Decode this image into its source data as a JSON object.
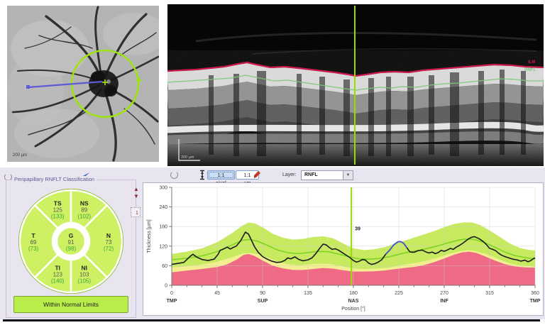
{
  "toolbar": {
    "pixel_button": "1:1 pixel",
    "um_button": "1:1 µm",
    "layer_label": "Layer:",
    "layer_value": "RNFL"
  },
  "fundus": {
    "scale_label": "200 µm"
  },
  "oct": {
    "scale_label": "200 µm",
    "label_ilm": "ILM",
    "label_rnfl": "RNFL"
  },
  "spinner": {
    "value": "1"
  },
  "classification": {
    "title": "Peripapillary RNFLT Classification",
    "status": "Within Normal Limits",
    "sectors": [
      {
        "id": "TS",
        "value": "125",
        "norm": "(133)"
      },
      {
        "id": "NS",
        "value": "89",
        "norm": "(102)"
      },
      {
        "id": "N",
        "value": "73",
        "norm": "(72)"
      },
      {
        "id": "NI",
        "value": "103",
        "norm": "(105)"
      },
      {
        "id": "TI",
        "value": "123",
        "norm": "(140)"
      },
      {
        "id": "T",
        "value": "69",
        "norm": "(73)"
      },
      {
        "id": "G",
        "value": "91",
        "norm": "(98)"
      }
    ]
  },
  "colors": {
    "band_green": "#c7ea60",
    "band_yellow": "#f3ef8e",
    "band_red": "#ef6a84",
    "mean_line": "#7ed321",
    "measured_line": "#1b1b1b",
    "highlight_line": "#4857c8",
    "cursor": "#98dd00",
    "sector_fill": "#cdf162",
    "sector_border": "#8ab82e",
    "value_text": "#555555",
    "norm_text": "#3aa53a",
    "ilm_line": "#cc1a4e",
    "rnfl_line": "#7cc87b"
  },
  "chart_data": {
    "type": "line",
    "title": "",
    "xlabel": "Position [°]",
    "ylabel": "Thickness [µm]",
    "xlim": [
      0,
      360
    ],
    "ylim": [
      0,
      300
    ],
    "xticks": [
      0,
      45,
      90,
      135,
      180,
      225,
      270,
      315,
      360
    ],
    "yticks": [
      0,
      60,
      120,
      180,
      240,
      300
    ],
    "minor_tick_step": 15,
    "grid": true,
    "region_labels": [
      {
        "pos": 0,
        "text": "TMP"
      },
      {
        "pos": 90,
        "text": "SUP"
      },
      {
        "pos": 180,
        "text": "NAS"
      },
      {
        "pos": 270,
        "text": "INF"
      },
      {
        "pos": 360,
        "text": "TMP"
      }
    ],
    "cursor": {
      "x": 178,
      "label": "39",
      "label_y": 168
    },
    "bands": {
      "upper95": [
        [
          0,
          96
        ],
        [
          15,
          103
        ],
        [
          30,
          113
        ],
        [
          45,
          132
        ],
        [
          60,
          160
        ],
        [
          70,
          183
        ],
        [
          76,
          192
        ],
        [
          82,
          190
        ],
        [
          90,
          178
        ],
        [
          100,
          158
        ],
        [
          110,
          146
        ],
        [
          120,
          140
        ],
        [
          130,
          142
        ],
        [
          140,
          148
        ],
        [
          150,
          150
        ],
        [
          160,
          144
        ],
        [
          170,
          128
        ],
        [
          180,
          113
        ],
        [
          190,
          108
        ],
        [
          200,
          110
        ],
        [
          210,
          116
        ],
        [
          220,
          126
        ],
        [
          230,
          136
        ],
        [
          240,
          146
        ],
        [
          250,
          156
        ],
        [
          260,
          166
        ],
        [
          270,
          178
        ],
        [
          280,
          188
        ],
        [
          290,
          193
        ],
        [
          298,
          192
        ],
        [
          306,
          184
        ],
        [
          315,
          168
        ],
        [
          325,
          148
        ],
        [
          335,
          128
        ],
        [
          345,
          114
        ],
        [
          355,
          108
        ],
        [
          360,
          107
        ]
      ],
      "lower5": [
        [
          0,
          54
        ],
        [
          15,
          58
        ],
        [
          30,
          63
        ],
        [
          45,
          72
        ],
        [
          60,
          86
        ],
        [
          70,
          97
        ],
        [
          78,
          99
        ],
        [
          85,
          95
        ],
        [
          95,
          84
        ],
        [
          105,
          72
        ],
        [
          115,
          64
        ],
        [
          125,
          61
        ],
        [
          135,
          63
        ],
        [
          145,
          66
        ],
        [
          155,
          65
        ],
        [
          165,
          60
        ],
        [
          175,
          54
        ],
        [
          185,
          50
        ],
        [
          195,
          50
        ],
        [
          205,
          51
        ],
        [
          215,
          54
        ],
        [
          225,
          60
        ],
        [
          235,
          65
        ],
        [
          245,
          70
        ],
        [
          255,
          77
        ],
        [
          265,
          86
        ],
        [
          275,
          96
        ],
        [
          285,
          104
        ],
        [
          293,
          107
        ],
        [
          300,
          105
        ],
        [
          310,
          97
        ],
        [
          320,
          85
        ],
        [
          330,
          72
        ],
        [
          340,
          63
        ],
        [
          350,
          59
        ],
        [
          360,
          57
        ]
      ],
      "lower1": [
        [
          0,
          40
        ],
        [
          15,
          45
        ],
        [
          30,
          50
        ],
        [
          45,
          56
        ],
        [
          55,
          64
        ],
        [
          65,
          80
        ],
        [
          71,
          93
        ],
        [
          76,
          96
        ],
        [
          82,
          90
        ],
        [
          90,
          76
        ],
        [
          100,
          60
        ],
        [
          110,
          52
        ],
        [
          120,
          47
        ],
        [
          130,
          47
        ],
        [
          140,
          50
        ],
        [
          150,
          53
        ],
        [
          160,
          51
        ],
        [
          170,
          46
        ],
        [
          180,
          42
        ],
        [
          190,
          42
        ],
        [
          200,
          43
        ],
        [
          210,
          45
        ],
        [
          220,
          49
        ],
        [
          230,
          53
        ],
        [
          240,
          56
        ],
        [
          250,
          62
        ],
        [
          260,
          71
        ],
        [
          270,
          82
        ],
        [
          280,
          94
        ],
        [
          288,
          101
        ],
        [
          295,
          103
        ],
        [
          302,
          99
        ],
        [
          310,
          89
        ],
        [
          320,
          76
        ],
        [
          330,
          65
        ],
        [
          340,
          58
        ],
        [
          350,
          55
        ],
        [
          360,
          54
        ]
      ]
    },
    "series": [
      {
        "name": "normal-mean",
        "color_key": "mean_line",
        "width": 1.6,
        "points": [
          [
            0,
            78
          ],
          [
            15,
            83
          ],
          [
            30,
            90
          ],
          [
            45,
            103
          ],
          [
            60,
            124
          ],
          [
            70,
            138
          ],
          [
            78,
            140
          ],
          [
            85,
            135
          ],
          [
            95,
            122
          ],
          [
            105,
            108
          ],
          [
            115,
            100
          ],
          [
            125,
            97
          ],
          [
            135,
            100
          ],
          [
            145,
            104
          ],
          [
            155,
            103
          ],
          [
            165,
            96
          ],
          [
            175,
            88
          ],
          [
            185,
            81
          ],
          [
            195,
            80
          ],
          [
            205,
            82
          ],
          [
            215,
            87
          ],
          [
            225,
            95
          ],
          [
            235,
            102
          ],
          [
            245,
            107
          ],
          [
            255,
            114
          ],
          [
            265,
            122
          ],
          [
            275,
            131
          ],
          [
            285,
            139
          ],
          [
            293,
            142
          ],
          [
            300,
            140
          ],
          [
            310,
            131
          ],
          [
            320,
            117
          ],
          [
            330,
            102
          ],
          [
            340,
            91
          ],
          [
            350,
            85
          ],
          [
            360,
            80
          ]
        ]
      },
      {
        "name": "measured",
        "color_key": "measured_line",
        "width": 1.6,
        "points": [
          [
            0,
            64
          ],
          [
            6,
            67
          ],
          [
            12,
            70
          ],
          [
            18,
            88
          ],
          [
            21,
            95
          ],
          [
            25,
            86
          ],
          [
            30,
            79
          ],
          [
            36,
            76
          ],
          [
            42,
            80
          ],
          [
            46,
            95
          ],
          [
            48,
            107
          ],
          [
            52,
            112
          ],
          [
            55,
            117
          ],
          [
            58,
            111
          ],
          [
            61,
            116
          ],
          [
            64,
            120
          ],
          [
            68,
            135
          ],
          [
            71,
            152
          ],
          [
            73,
            163
          ],
          [
            76,
            157
          ],
          [
            79,
            138
          ],
          [
            82,
            118
          ],
          [
            86,
            100
          ],
          [
            90,
            88
          ],
          [
            94,
            81
          ],
          [
            99,
            74
          ],
          [
            104,
            70
          ],
          [
            108,
            71
          ],
          [
            112,
            76
          ],
          [
            115,
            84
          ],
          [
            118,
            81
          ],
          [
            122,
            87
          ],
          [
            126,
            79
          ],
          [
            130,
            75
          ],
          [
            135,
            78
          ],
          [
            139,
            84
          ],
          [
            143,
            98
          ],
          [
            147,
            115
          ],
          [
            150,
            126
          ],
          [
            153,
            124
          ],
          [
            156,
            116
          ],
          [
            159,
            110
          ],
          [
            162,
            112
          ],
          [
            165,
            108
          ],
          [
            168,
            102
          ],
          [
            172,
            94
          ],
          [
            176,
            86
          ],
          [
            180,
            76
          ],
          [
            183,
            71
          ],
          [
            186,
            74
          ],
          [
            189,
            79
          ],
          [
            192,
            77
          ],
          [
            195,
            68
          ],
          [
            198,
            64
          ],
          [
            201,
            66
          ],
          [
            204,
            70
          ],
          [
            208,
            78
          ],
          [
            212,
            95
          ],
          [
            216,
            108
          ],
          [
            220,
            124
          ],
          [
            224,
            133
          ],
          [
            227,
            134
          ],
          [
            230,
            128
          ],
          [
            233,
            115
          ],
          [
            236,
            102
          ],
          [
            240,
            101
          ],
          [
            244,
            106
          ],
          [
            248,
            108
          ],
          [
            252,
            102
          ],
          [
            255,
            99
          ],
          [
            258,
            102
          ],
          [
            261,
            97
          ],
          [
            264,
            100
          ],
          [
            267,
            107
          ],
          [
            270,
            104
          ],
          [
            273,
            108
          ],
          [
            276,
            113
          ],
          [
            279,
            110
          ],
          [
            282,
            117
          ],
          [
            285,
            122
          ],
          [
            288,
            128
          ],
          [
            291,
            135
          ],
          [
            294,
            142
          ],
          [
            297,
            147
          ],
          [
            300,
            149
          ],
          [
            303,
            145
          ],
          [
            306,
            140
          ],
          [
            309,
            133
          ],
          [
            312,
            124
          ],
          [
            315,
            113
          ],
          [
            318,
            110
          ],
          [
            321,
            106
          ],
          [
            324,
            98
          ],
          [
            327,
            92
          ],
          [
            330,
            88
          ],
          [
            334,
            84
          ],
          [
            338,
            80
          ],
          [
            342,
            78
          ],
          [
            346,
            74
          ],
          [
            350,
            77
          ],
          [
            353,
            72
          ],
          [
            356,
            76
          ],
          [
            358,
            81
          ],
          [
            360,
            84
          ]
        ]
      },
      {
        "name": "measured-highlight",
        "color_key": "highlight_line",
        "width": 1.8,
        "points": [
          [
            212,
            95
          ],
          [
            216,
            108
          ],
          [
            220,
            124
          ],
          [
            224,
            133
          ],
          [
            227,
            134
          ],
          [
            230,
            128
          ],
          [
            233,
            115
          ]
        ]
      }
    ]
  }
}
